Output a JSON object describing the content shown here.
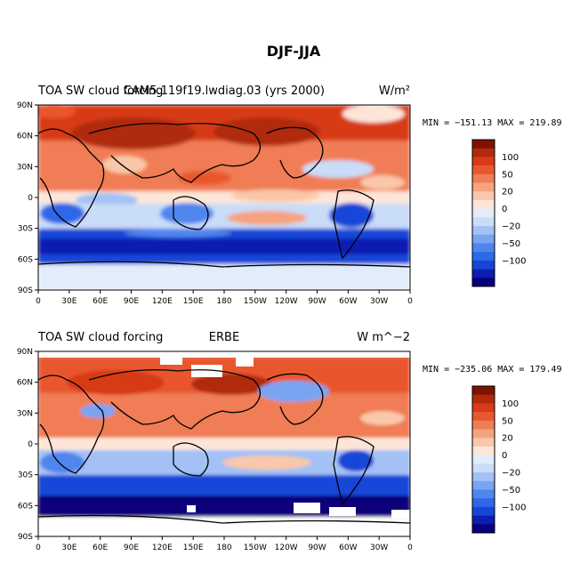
{
  "figure_title": "DJF-JJA",
  "colors": {
    "levels": [
      "#08007a",
      "#0a1fb0",
      "#1546d8",
      "#2d68e8",
      "#4f86ee",
      "#7aa4f2",
      "#a3c1f5",
      "#c9dcf8",
      "#e2edfb",
      "#fde6d8",
      "#f9c7a9",
      "#f5a37e",
      "#f07d55",
      "#e9572f",
      "#d73b17",
      "#b02a0c",
      "#7e1300"
    ],
    "coast": "#000000",
    "missing": "#ffffff"
  },
  "colorbar": {
    "labels": [
      "100",
      "50",
      "20",
      "0",
      "−20",
      "−50",
      "−100"
    ]
  },
  "axes": {
    "lat_labels": [
      "90N",
      "60N",
      "30N",
      "0",
      "30S",
      "60S",
      "90S"
    ],
    "lon_labels": [
      "0",
      "30E",
      "60E",
      "90E",
      "120E",
      "150E",
      "180",
      "150W",
      "120W",
      "90W",
      "60W",
      "30W",
      "0"
    ]
  },
  "panels": [
    {
      "left_text": "TOA SW cloud forcing",
      "center_text": "CAM5.119f19.lwdiag.03 (yrs 2000)",
      "right_text": "W/m²",
      "minmax_text": "MIN = −151.13 MAX = 219.89"
    },
    {
      "left_text": "TOA SW cloud forcing",
      "center_text": "ERBE",
      "right_text": "W m^−2",
      "minmax_text": "MIN = −235.06 MAX = 179.49"
    }
  ]
}
